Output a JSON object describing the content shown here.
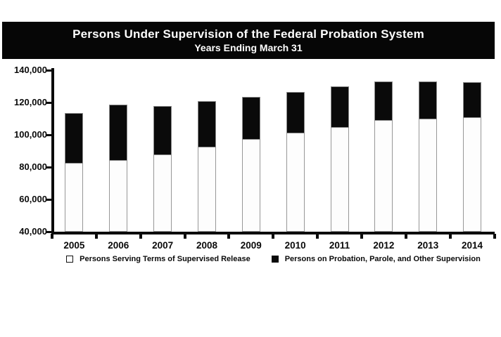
{
  "header": {
    "title": "Persons Under Supervision of the Federal Probation System",
    "subtitle": "Years Ending March 31",
    "bar_color": "#000000",
    "text_color": "#ffffff"
  },
  "chart_data": {
    "type": "bar",
    "stacked": true,
    "title": "Persons Under Supervision of the Federal Probation System",
    "subtitle": "Years Ending March 31",
    "categories": [
      "2005",
      "2006",
      "2007",
      "2008",
      "2009",
      "2010",
      "2011",
      "2012",
      "2013",
      "2014"
    ],
    "series": [
      {
        "name": "Persons Serving Terms of Supervised Release",
        "fill": "#ffffff",
        "values": [
          82000,
          84000,
          87500,
          92000,
          97000,
          101000,
          104500,
          108500,
          109500,
          110500
        ]
      },
      {
        "name": "Persons on Probation, Parole, and Other Supervision",
        "fill": "#000000",
        "values": [
          31500,
          34500,
          30500,
          29000,
          26500,
          25500,
          25500,
          24500,
          23500,
          22000
        ]
      }
    ],
    "stacked_totals": [
      113500,
      118500,
      118000,
      121000,
      123500,
      126500,
      130000,
      133000,
      133000,
      132500
    ],
    "xlabel": "",
    "ylabel": "",
    "ylim": [
      40000,
      140000
    ],
    "ytick_interval": 20000,
    "ytick_labels": [
      "40,000",
      "60,000",
      "80,000",
      "100,000",
      "120,000",
      "140,000"
    ],
    "grid": false,
    "legend_position": "bottom",
    "axis_color": "#000000",
    "bar_border_color": "#979797"
  },
  "legend": {
    "items": [
      {
        "label": "Persons Serving Terms of Supervised Release",
        "swatch": "#ffffff"
      },
      {
        "label": "Persons on Probation, Parole, and Other Supervision",
        "swatch": "#000000"
      }
    ]
  }
}
